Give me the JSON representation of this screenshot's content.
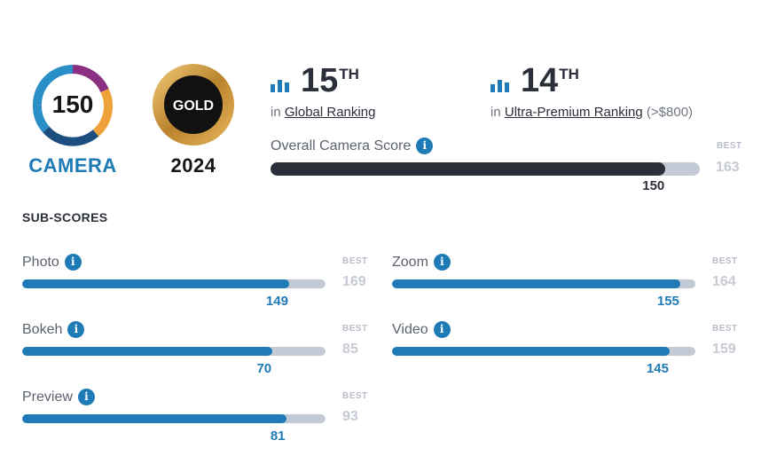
{
  "badges": {
    "score": {
      "value": "150",
      "caption": "CAMERA"
    },
    "label": {
      "value": "GOLD",
      "caption": "2024"
    }
  },
  "ranking": {
    "global": {
      "position": "15",
      "suffix": "TH",
      "prefix": "in",
      "link": "Global Ranking",
      "extra": ""
    },
    "segment": {
      "position": "14",
      "suffix": "TH",
      "prefix": "in",
      "link": "Ultra-Premium Ranking",
      "extra": "(>$800)"
    }
  },
  "overall": {
    "label": "Overall Camera Score",
    "value": "150",
    "best_label": "BEST",
    "best": "163",
    "fill_fraction": 0.92
  },
  "subscores": {
    "title": "SUB-SCORES",
    "items": [
      {
        "label": "Photo",
        "value": "149",
        "best_label": "BEST",
        "best": "169",
        "fill_fraction": 0.88
      },
      {
        "label": "Zoom",
        "value": "155",
        "best_label": "BEST",
        "best": "164",
        "fill_fraction": 0.95
      },
      {
        "label": "Bokeh",
        "value": "70",
        "best_label": "BEST",
        "best": "85",
        "fill_fraction": 0.825
      },
      {
        "label": "Video",
        "value": "145",
        "best_label": "BEST",
        "best": "159",
        "fill_fraction": 0.915
      },
      {
        "label": "Preview",
        "value": "81",
        "best_label": "BEST",
        "best": "93",
        "fill_fraction": 0.87
      }
    ]
  },
  "colors": {
    "accent": "#1f7bb6",
    "dark": "#2b2f3a",
    "track": "#c4c9d6",
    "gold": "#c9973a"
  }
}
